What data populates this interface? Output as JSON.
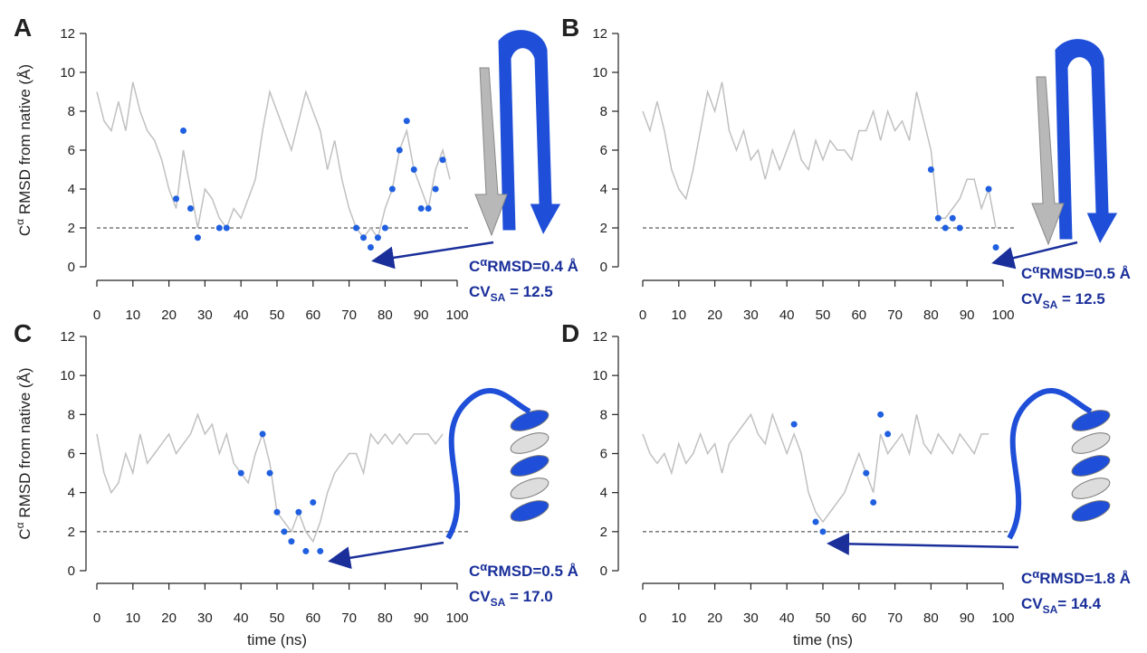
{
  "chart_data": [
    {
      "type": "line",
      "panel_label": "A",
      "y_label": {
        "prefix": "C",
        "sup": "α",
        "text": " RMSD from native (Å)"
      },
      "x": [
        0,
        2,
        4,
        6,
        8,
        10,
        12,
        14,
        16,
        18,
        20,
        22,
        24,
        26,
        28,
        30,
        32,
        34,
        36,
        38,
        40,
        42,
        44,
        46,
        48,
        50,
        52,
        54,
        56,
        58,
        60,
        62,
        64,
        66,
        68,
        70,
        72,
        74,
        76,
        78,
        80,
        82,
        84,
        86,
        88,
        90,
        92,
        94,
        96,
        98,
        100
      ],
      "series": [
        {
          "color": "#c0c0c0",
          "values": [
            9,
            7.5,
            7,
            8.5,
            7,
            9.5,
            8,
            7,
            6.5,
            5.5,
            4,
            3,
            6,
            4,
            2,
            4,
            3.5,
            2.5,
            2,
            3,
            2.5,
            3.5,
            4.5,
            7,
            9,
            8,
            7,
            6,
            7.5,
            9,
            8,
            7,
            5,
            6.5,
            4.5,
            3,
            2,
            1.5,
            2,
            1.5,
            3,
            4,
            6,
            7,
            5,
            4,
            3,
            5,
            6,
            4.5,
            null
          ]
        },
        {
          "color": "#1f5fe0",
          "values": [
            null,
            null,
            null,
            null,
            null,
            null,
            null,
            null,
            null,
            null,
            null,
            3.5,
            7,
            3,
            1.5,
            null,
            null,
            2,
            2,
            null,
            null,
            null,
            null,
            null,
            null,
            null,
            null,
            null,
            null,
            null,
            null,
            null,
            null,
            null,
            null,
            null,
            2,
            1.5,
            1,
            1.5,
            2,
            4,
            6,
            7.5,
            5,
            3,
            3,
            4,
            5.5,
            null,
            null
          ]
        }
      ],
      "xlim": [
        0,
        100
      ],
      "ylim": [
        0,
        12
      ],
      "xticks": [
        0,
        10,
        20,
        30,
        40,
        50,
        60,
        70,
        80,
        90,
        100
      ],
      "yticks": [
        0,
        2,
        4,
        6,
        8,
        10,
        12
      ],
      "threshold": 2,
      "annotation": {
        "c": "C",
        "sup": "α",
        "rmsd": "RMSD=0.4 Å",
        "cv": "CV",
        "sub": "SA",
        "cv_text": " = 12.5"
      }
    },
    {
      "type": "line",
      "panel_label": "B",
      "x": [
        0,
        2,
        4,
        6,
        8,
        10,
        12,
        14,
        16,
        18,
        20,
        22,
        24,
        26,
        28,
        30,
        32,
        34,
        36,
        38,
        40,
        42,
        44,
        46,
        48,
        50,
        52,
        54,
        56,
        58,
        60,
        62,
        64,
        66,
        68,
        70,
        72,
        74,
        76,
        78,
        80,
        82,
        84,
        86,
        88,
        90,
        92,
        94,
        96,
        98,
        100
      ],
      "series": [
        {
          "color": "#c0c0c0",
          "values": [
            8,
            7,
            8.5,
            7,
            5,
            4,
            3.5,
            5,
            7,
            9,
            8,
            9.5,
            7,
            6,
            7,
            5.5,
            6,
            4.5,
            6,
            5,
            6,
            7,
            5.5,
            5,
            6.5,
            5.5,
            6.5,
            6,
            6,
            5.5,
            7,
            7,
            8,
            6.5,
            8,
            7,
            7.5,
            6.5,
            9,
            7.5,
            6,
            2.5,
            2.5,
            3,
            3.5,
            4.5,
            4.5,
            3,
            4,
            2,
            null
          ]
        },
        {
          "color": "#1f5fe0",
          "values": [
            null,
            null,
            null,
            null,
            null,
            null,
            null,
            null,
            null,
            null,
            null,
            null,
            null,
            null,
            null,
            null,
            null,
            null,
            null,
            null,
            null,
            null,
            null,
            null,
            null,
            null,
            null,
            null,
            null,
            null,
            null,
            null,
            null,
            null,
            null,
            null,
            null,
            null,
            null,
            null,
            5,
            2.5,
            2,
            2.5,
            2,
            null,
            null,
            null,
            4,
            1,
            null
          ]
        }
      ],
      "xlim": [
        0,
        100
      ],
      "ylim": [
        0,
        12
      ],
      "xticks": [
        0,
        10,
        20,
        30,
        40,
        50,
        60,
        70,
        80,
        90,
        100
      ],
      "yticks": [
        0,
        2,
        4,
        6,
        8,
        10,
        12
      ],
      "threshold": 2,
      "annotation": {
        "c": "C",
        "sup": "α",
        "rmsd": "RMSD=0.5 Å",
        "cv": "CV",
        "sub": "SA",
        "cv_text": " = 12.5"
      }
    },
    {
      "type": "line",
      "panel_label": "C",
      "y_label": {
        "prefix": "C",
        "sup": "α",
        "text": " RMSD from native (Å)"
      },
      "x_label": "time (ns)",
      "x": [
        0,
        2,
        4,
        6,
        8,
        10,
        12,
        14,
        16,
        18,
        20,
        22,
        24,
        26,
        28,
        30,
        32,
        34,
        36,
        38,
        40,
        42,
        44,
        46,
        48,
        50,
        52,
        54,
        56,
        58,
        60,
        62,
        64,
        66,
        68,
        70,
        72,
        74,
        76,
        78,
        80,
        82,
        84,
        86,
        88,
        90,
        92,
        94,
        96,
        98,
        100
      ],
      "series": [
        {
          "color": "#c0c0c0",
          "values": [
            7,
            5,
            4,
            4.5,
            6,
            5,
            7,
            5.5,
            6,
            6.5,
            7,
            6,
            6.5,
            7,
            8,
            7,
            7.5,
            6,
            7,
            5.5,
            5,
            4.5,
            6,
            7,
            5.5,
            3,
            2.5,
            2,
            3,
            2,
            1.5,
            2.5,
            4,
            5,
            5.5,
            6,
            6,
            5,
            7,
            6.5,
            7,
            6.5,
            7,
            6.5,
            7,
            7,
            7,
            6.5,
            7,
            null,
            null
          ]
        },
        {
          "color": "#1f5fe0",
          "values": [
            null,
            null,
            null,
            null,
            null,
            null,
            null,
            null,
            null,
            null,
            null,
            null,
            null,
            null,
            null,
            null,
            null,
            null,
            null,
            null,
            5,
            null,
            null,
            7,
            5,
            3,
            2,
            1.5,
            3,
            1,
            3.5,
            1,
            null,
            null,
            null,
            null,
            null,
            null,
            null,
            null,
            null,
            null,
            null,
            null,
            null,
            null,
            null,
            null,
            null,
            null,
            null
          ]
        }
      ],
      "xlim": [
        0,
        100
      ],
      "ylim": [
        0,
        12
      ],
      "xticks": [
        0,
        10,
        20,
        30,
        40,
        50,
        60,
        70,
        80,
        90,
        100
      ],
      "yticks": [
        0,
        2,
        4,
        6,
        8,
        10,
        12
      ],
      "threshold": 2,
      "annotation": {
        "c": "C",
        "sup": "α",
        "rmsd": "RMSD=0.5 Å",
        "cv": "CV",
        "sub": "SA",
        "cv_text": " = 17.0"
      }
    },
    {
      "type": "line",
      "panel_label": "D",
      "x_label": "time (ns)",
      "x": [
        0,
        2,
        4,
        6,
        8,
        10,
        12,
        14,
        16,
        18,
        20,
        22,
        24,
        26,
        28,
        30,
        32,
        34,
        36,
        38,
        40,
        42,
        44,
        46,
        48,
        50,
        52,
        54,
        56,
        58,
        60,
        62,
        64,
        66,
        68,
        70,
        72,
        74,
        76,
        78,
        80,
        82,
        84,
        86,
        88,
        90,
        92,
        94,
        96,
        98,
        100
      ],
      "series": [
        {
          "color": "#c0c0c0",
          "values": [
            7,
            6,
            5.5,
            6,
            5,
            6.5,
            5.5,
            6,
            7,
            6,
            6.5,
            5,
            6.5,
            7,
            7.5,
            8,
            7,
            6.5,
            8,
            7,
            6,
            7,
            6,
            4,
            3,
            2.5,
            3,
            3.5,
            4,
            5,
            6,
            5,
            4,
            7,
            6,
            6.5,
            7,
            6,
            8,
            6.5,
            6,
            7,
            6.5,
            6,
            7,
            6.5,
            6,
            7,
            7,
            null,
            null
          ]
        },
        {
          "color": "#1f5fe0",
          "values": [
            null,
            null,
            null,
            null,
            null,
            null,
            null,
            null,
            null,
            null,
            null,
            null,
            null,
            null,
            null,
            null,
            null,
            null,
            null,
            null,
            null,
            7.5,
            null,
            null,
            2.5,
            2,
            null,
            null,
            null,
            null,
            null,
            5,
            3.5,
            8,
            7,
            null,
            null,
            null,
            null,
            null,
            null,
            null,
            null,
            null,
            null,
            null,
            null,
            null,
            null,
            null,
            null
          ]
        }
      ],
      "xlim": [
        0,
        100
      ],
      "ylim": [
        0,
        12
      ],
      "xticks": [
        0,
        10,
        20,
        30,
        40,
        50,
        60,
        70,
        80,
        90,
        100
      ],
      "yticks": [
        0,
        2,
        4,
        6,
        8,
        10,
        12
      ],
      "threshold": 2,
      "annotation": {
        "c": "C",
        "sup": "α",
        "rmsd": "RMSD=1.8 Å",
        "cv": "CV",
        "sub": "SA",
        "cv_text": "= 14.4"
      }
    }
  ]
}
